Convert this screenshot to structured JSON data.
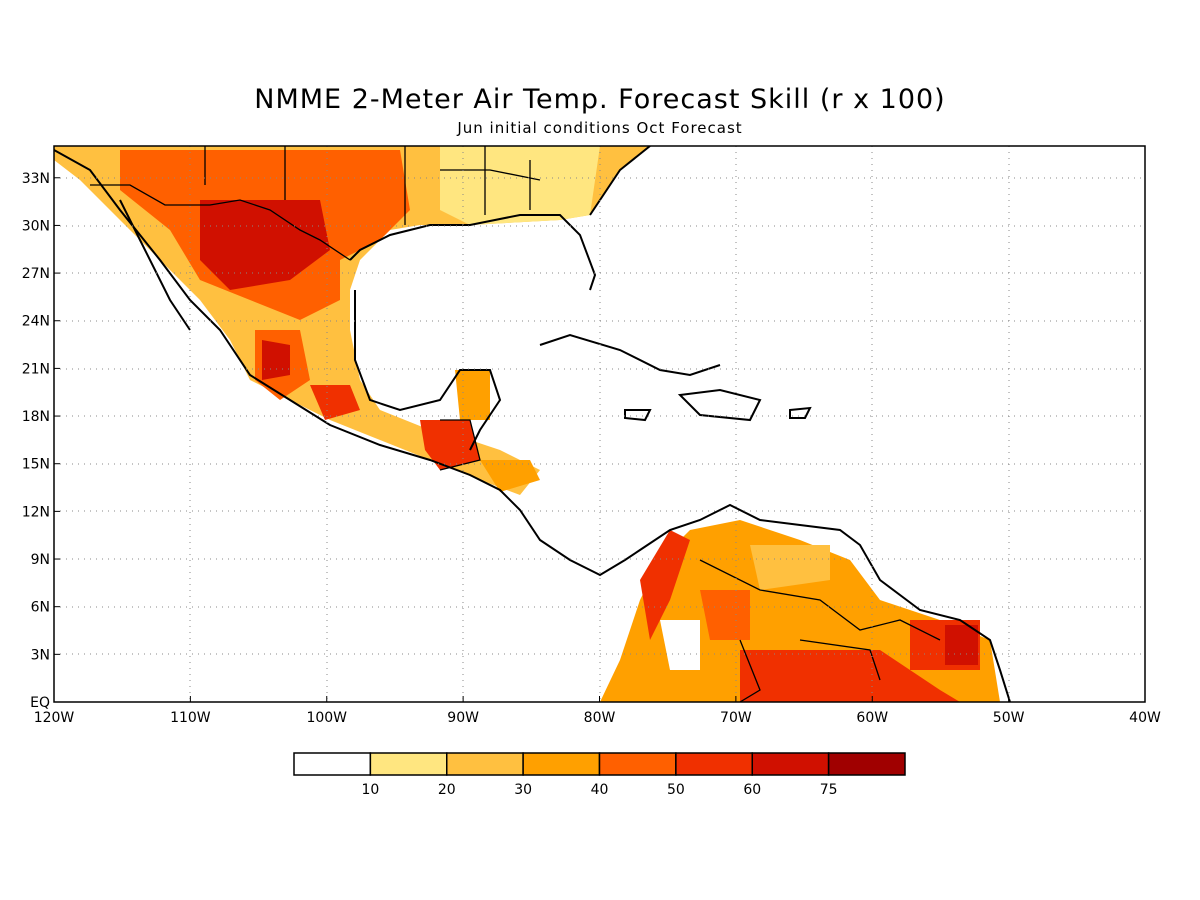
{
  "title": "NMME 2-Meter Air Temp. Forecast Skill (r x 100)",
  "subtitle": "Jun initial conditions  Oct Forecast",
  "map": {
    "lon_range": [
      -120,
      -40
    ],
    "lat_range": [
      0,
      35
    ],
    "lon_ticks": [
      "120W",
      "110W",
      "100W",
      "90W",
      "80W",
      "70W",
      "60W",
      "50W",
      "40W"
    ],
    "lat_ticks": [
      "EQ",
      "3N",
      "6N",
      "9N",
      "12N",
      "15N",
      "18N",
      "21N",
      "24N",
      "27N",
      "30N",
      "33N"
    ],
    "grid": "dotted",
    "land_color": "#ffffff",
    "ocean_color": "#ffffff"
  },
  "colorbar": {
    "labels": [
      "10",
      "20",
      "30",
      "40",
      "50",
      "60",
      "75"
    ],
    "colors": [
      "#ffffff",
      "#ffe680",
      "#ffc040",
      "#ffa000",
      "#ff6000",
      "#f03000",
      "#d01000",
      "#a00000"
    ]
  }
}
